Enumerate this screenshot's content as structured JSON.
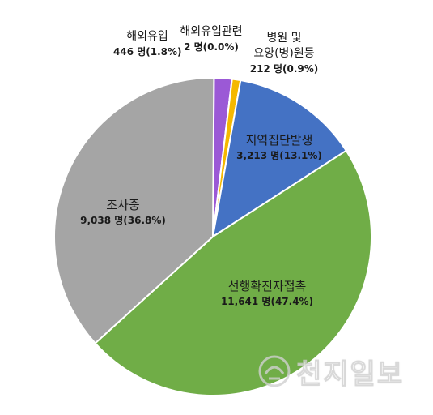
{
  "chart_data": {
    "type": "pie",
    "slices": [
      {
        "label_lines": [
          "해외유입"
        ],
        "value_text": "446 명(1.8%)",
        "value": 446,
        "percent": 1.8,
        "color": "#9b59d6"
      },
      {
        "label_lines": [
          "해외유입관련"
        ],
        "value_text": "2 명(0.0%)",
        "value": 2,
        "percent": 0.0,
        "color": "#f5b800"
      },
      {
        "label_lines": [
          "병원 및",
          "요양(병)원등"
        ],
        "value_text": "212 명(0.9%)",
        "value": 212,
        "percent": 0.9,
        "color": "#f5b800"
      },
      {
        "label_lines": [
          "지역집단발생"
        ],
        "value_text": "3,213 명(13.1%)",
        "value": 3213,
        "percent": 13.1,
        "color": "#4472c4"
      },
      {
        "label_lines": [
          "선행확진자접촉"
        ],
        "value_text": "11,641 명(47.4%)",
        "value": 11641,
        "percent": 47.4,
        "color": "#70ad47"
      },
      {
        "label_lines": [
          "조사중"
        ],
        "value_text": "9,038 명(36.8%)",
        "value": 9038,
        "percent": 36.8,
        "color": "#a5a5a5"
      }
    ],
    "title": "",
    "legend": "none"
  },
  "watermark": {
    "text": "천지일보",
    "icon": "seal-logo-icon"
  }
}
